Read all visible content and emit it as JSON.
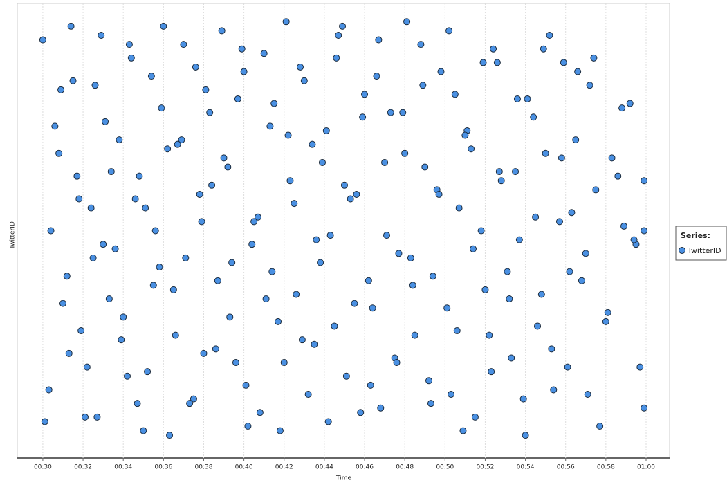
{
  "chart_data": {
    "type": "scatter",
    "x_label": "Time",
    "y_label": "TwitterID",
    "legend_title": "Series:",
    "grid": true,
    "xlim": [
      28.73,
      61.17
    ],
    "ylim": [
      0,
      100
    ],
    "xticks": [
      {
        "value": 30,
        "label": "00:30"
      },
      {
        "value": 32,
        "label": "00:32"
      },
      {
        "value": 34,
        "label": "00:34"
      },
      {
        "value": 36,
        "label": "00:36"
      },
      {
        "value": 38,
        "label": "00:38"
      },
      {
        "value": 40,
        "label": "00:40"
      },
      {
        "value": 42,
        "label": "00:42"
      },
      {
        "value": 44,
        "label": "00:44"
      },
      {
        "value": 46,
        "label": "00:46"
      },
      {
        "value": 48,
        "label": "00:48"
      },
      {
        "value": 50,
        "label": "00:50"
      },
      {
        "value": 52,
        "label": "00:52"
      },
      {
        "value": 54,
        "label": "00:54"
      },
      {
        "value": 56,
        "label": "00:56"
      },
      {
        "value": 58,
        "label": "00:58"
      },
      {
        "value": 60,
        "label": "01:00"
      }
    ],
    "x": [
      30.0,
      30.3,
      30.8,
      31.2,
      31.5,
      31.9,
      32.4,
      32.7,
      33.1,
      33.6,
      34.0,
      34.4,
      34.8,
      35.2,
      35.6,
      36.0,
      36.5,
      36.9,
      37.3,
      37.8,
      38.1,
      38.6,
      39.0,
      39.4,
      39.9,
      40.2,
      40.7,
      41.1,
      41.5,
      42.0,
      42.3,
      42.8,
      43.2,
      43.6,
      44.1,
      44.5,
      44.9,
      45.3,
      45.8,
      46.2,
      46.6,
      47.0,
      47.5,
      47.9,
      48.3,
      48.8,
      49.2,
      49.6,
      50.1,
      50.5,
      50.9,
      51.3,
      51.8,
      52.2,
      52.6,
      53.1,
      53.5,
      53.9,
      54.4,
      54.8,
      55.2,
      55.7,
      56.1,
      56.5,
      57.0,
      57.4,
      58.0,
      58.6,
      59.2,
      59.9,
      30.1,
      30.6,
      31.0,
      31.4,
      31.8,
      32.2,
      32.6,
      33.0,
      33.4,
      33.9,
      34.3,
      34.7,
      35.1,
      35.5,
      35.9,
      36.3,
      36.7,
      37.1,
      37.6,
      38.0,
      38.4,
      38.9,
      39.3,
      39.7,
      40.1,
      40.5,
      41.0,
      41.4,
      41.8,
      42.2,
      42.6,
      43.0,
      43.5,
      43.9,
      44.3,
      44.7,
      45.1,
      45.6,
      46.0,
      46.4,
      46.8,
      47.3,
      47.7,
      48.1,
      48.5,
      49.0,
      49.4,
      49.8,
      50.3,
      50.7,
      51.1,
      51.5,
      52.0,
      52.4,
      52.8,
      53.3,
      53.7,
      54.1,
      54.6,
      55.0,
      55.4,
      55.9,
      56.3,
      56.8,
      57.2,
      57.7,
      58.3,
      58.9,
      59.5,
      59.9,
      30.4,
      30.9,
      31.3,
      31.7,
      32.1,
      32.5,
      32.9,
      33.3,
      33.8,
      34.2,
      34.6,
      35.0,
      35.4,
      35.8,
      36.2,
      36.6,
      37.0,
      37.5,
      37.9,
      38.3,
      38.7,
      39.2,
      39.6,
      40.0,
      40.4,
      40.8,
      41.3,
      41.7,
      42.1,
      42.5,
      42.9,
      43.4,
      43.8,
      44.2,
      44.6,
      45.0,
      45.5,
      45.9,
      46.3,
      46.7,
      47.1,
      47.6,
      48.0,
      48.4,
      48.9,
      49.3,
      49.7,
      50.2,
      50.6,
      51.0,
      51.4,
      51.9,
      52.3,
      52.7,
      53.2,
      53.6,
      54.0,
      54.5,
      54.9,
      55.3,
      55.8,
      56.2,
      56.6,
      57.1,
      57.5,
      58.1,
      58.8,
      59.4,
      59.7,
      59.9
    ],
    "series": [
      {
        "name": "TwitterID",
        "color": "#4a90e2",
        "values": [
          92,
          15,
          67,
          40,
          83,
          28,
          55,
          9,
          74,
          46,
          31,
          88,
          62,
          19,
          50,
          95,
          37,
          70,
          12,
          58,
          81,
          24,
          66,
          43,
          90,
          7,
          53,
          35,
          78,
          21,
          61,
          86,
          14,
          48,
          72,
          29,
          95,
          57,
          10,
          39,
          84,
          65,
          22,
          76,
          44,
          91,
          17,
          59,
          33,
          80,
          6,
          68,
          50,
          27,
          87,
          41,
          63,
          13,
          75,
          36,
          93,
          52,
          20,
          70,
          45,
          88,
          30,
          62,
          78,
          11,
          8,
          73,
          34,
          95,
          57,
          20,
          82,
          47,
          63,
          26,
          91,
          12,
          55,
          38,
          77,
          5,
          69,
          44,
          86,
          23,
          60,
          94,
          31,
          79,
          16,
          52,
          89,
          41,
          6,
          71,
          36,
          83,
          25,
          65,
          49,
          93,
          18,
          58,
          80,
          33,
          11,
          76,
          45,
          96,
          27,
          64,
          40,
          85,
          14,
          55,
          72,
          9,
          37,
          90,
          61,
          22,
          48,
          79,
          29,
          67,
          15,
          87,
          54,
          39,
          82,
          7,
          66,
          51,
          47,
          61,
          50,
          81,
          23,
          62,
          9,
          44,
          93,
          35,
          70,
          18,
          57,
          6,
          84,
          42,
          68,
          27,
          91,
          13,
          52,
          76,
          39,
          64,
          21,
          85,
          47,
          10,
          73,
          30,
          96,
          56,
          26,
          69,
          43,
          8,
          88,
          60,
          34,
          75,
          16,
          92,
          49,
          21,
          67,
          38,
          82,
          12,
          58,
          94,
          28,
          71,
          46,
          87,
          19,
          63,
          35,
          79,
          5,
          53,
          90,
          24,
          66,
          41,
          85,
          14,
          59,
          32,
          77,
          48,
          20,
          50
        ]
      }
    ]
  }
}
